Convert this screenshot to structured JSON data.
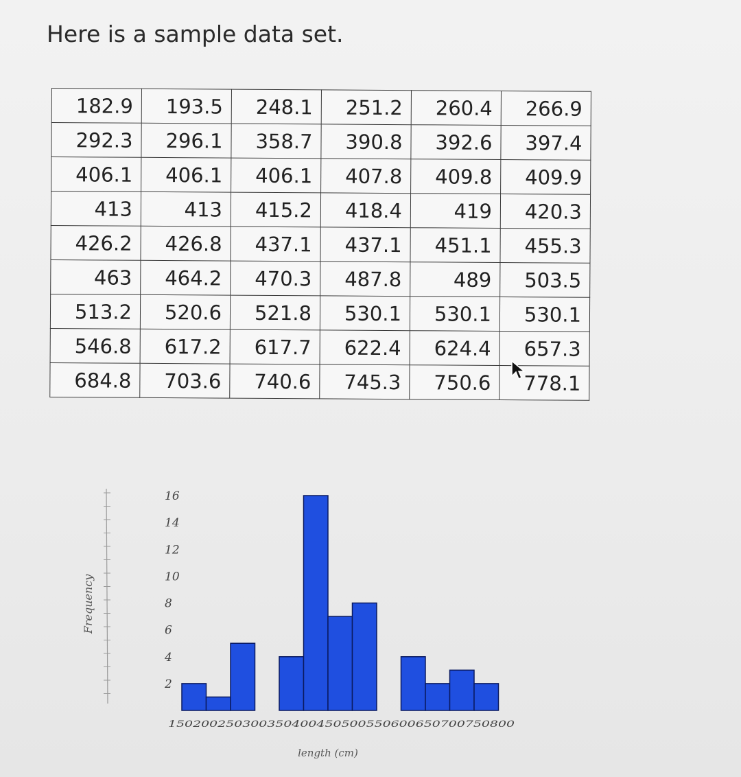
{
  "intro_text": "Here is a sample data set.",
  "table": {
    "rows": [
      [
        "182.9",
        "193.5",
        "248.1",
        "251.2",
        "260.4",
        "266.9"
      ],
      [
        "292.3",
        "296.1",
        "358.7",
        "390.8",
        "392.6",
        "397.4"
      ],
      [
        "406.1",
        "406.1",
        "406.1",
        "407.8",
        "409.8",
        "409.9"
      ],
      [
        "413",
        "413",
        "415.2",
        "418.4",
        "419",
        "420.3"
      ],
      [
        "426.2",
        "426.8",
        "437.1",
        "437.1",
        "451.1",
        "455.3"
      ],
      [
        "463",
        "464.2",
        "470.3",
        "487.8",
        "489",
        "503.5"
      ],
      [
        "513.2",
        "520.6",
        "521.8",
        "530.1",
        "530.1",
        "530.1"
      ],
      [
        "546.8",
        "617.2",
        "617.7",
        "622.4",
        "624.4",
        "657.3"
      ],
      [
        "684.8",
        "703.6",
        "740.6",
        "745.3",
        "750.6",
        "778.1"
      ]
    ]
  },
  "chart_data": {
    "type": "bar",
    "categories": [
      "150-200",
      "200-250",
      "250-300",
      "300-350",
      "350-400",
      "400-450",
      "450-500",
      "500-550",
      "550-600",
      "600-650",
      "650-700",
      "700-750",
      "750-800"
    ],
    "values": [
      2,
      1,
      5,
      0,
      4,
      16,
      7,
      8,
      0,
      4,
      2,
      3,
      2
    ],
    "x_tick_text": "150200250300350400450500550600650700750800",
    "y_ticks": [
      "2",
      "4",
      "6",
      "8",
      "10",
      "12",
      "14",
      "16"
    ],
    "ylim": [
      0,
      16
    ],
    "xlabel": "length (cm)",
    "ylabel": "Frequency",
    "bar_color": "#1f4fe0",
    "bar_edge_color": "#0a1a60",
    "grid": false
  }
}
